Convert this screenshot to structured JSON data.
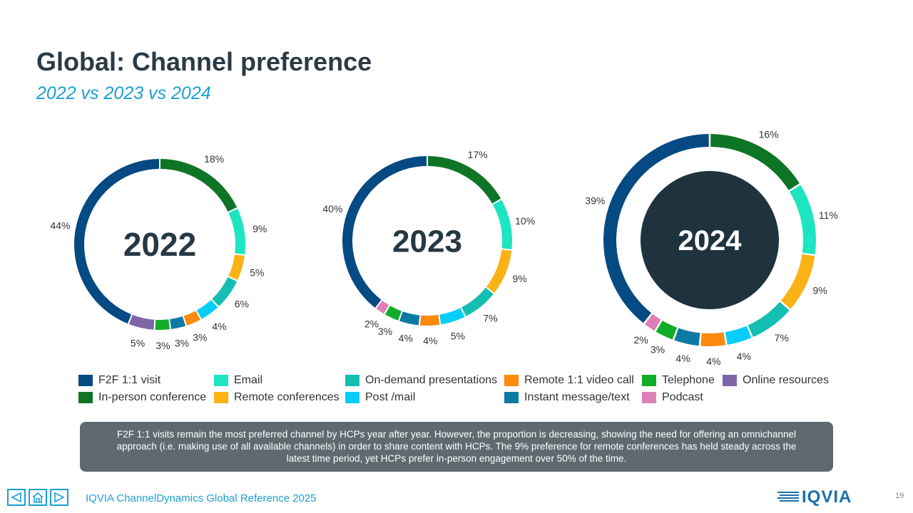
{
  "page": {
    "title": "Global: Channel preference",
    "subtitle": "2022 vs 2023 vs 2024",
    "callout": "F2F 1:1 visits remain the most preferred channel by HCPs year after year. However, the proportion is decreasing, showing the need for offering an omnichannel approach (i.e. making use of all available channels) in order to share content with HCPs. The 9% preference for remote conferences has held steady across the latest time period, yet HCPs prefer in-person engagement over 50% of the time.",
    "footer": "IQVIA ChannelDynamics Global Reference 2025",
    "logo_text": "IQVIA",
    "page_number": "19"
  },
  "legend": [
    {
      "label": "F2F 1:1 visit",
      "color": "#054a82"
    },
    {
      "label": "In-person conference",
      "color": "#0f7526"
    },
    {
      "label": "Email",
      "color": "#1de5c2"
    },
    {
      "label": "Remote conferences",
      "color": "#fbb215"
    },
    {
      "label": "On-demand presentations",
      "color": "#14beb1"
    },
    {
      "label": "Post /mail",
      "color": "#06cdf9"
    },
    {
      "label": "Remote 1:1 video call",
      "color": "#fd890d"
    },
    {
      "label": "Instant message/text",
      "color": "#0d7aa3"
    },
    {
      "label": "Telephone",
      "color": "#12ad28"
    },
    {
      "label": "Podcast",
      "color": "#dd80b8"
    },
    {
      "label": "Online resources",
      "color": "#7e65a8"
    }
  ],
  "nav_icons": [
    "prev-icon",
    "home-icon",
    "next-icon"
  ],
  "chart_data": [
    {
      "type": "pie",
      "year_label": "2022",
      "center_filled": false,
      "slices": [
        {
          "name": "In-person conference",
          "value": 18,
          "label": "18%",
          "color": "#0f7526"
        },
        {
          "name": "Email",
          "value": 9,
          "label": "9%",
          "color": "#1de5c2"
        },
        {
          "name": "Remote conferences",
          "value": 5,
          "label": "5%",
          "color": "#fbb215"
        },
        {
          "name": "On-demand presentations",
          "value": 6,
          "label": "6%",
          "color": "#14beb1"
        },
        {
          "name": "Post /mail",
          "value": 4,
          "label": "4%",
          "color": "#06cdf9"
        },
        {
          "name": "Remote 1:1 video call",
          "value": 3,
          "label": "3%",
          "color": "#fd890d"
        },
        {
          "name": "Instant message/text",
          "value": 3,
          "label": "3%",
          "color": "#0d7aa3"
        },
        {
          "name": "Telephone",
          "value": 3,
          "label": "3%",
          "color": "#12ad28"
        },
        {
          "name": "Online resources",
          "value": 5,
          "label": "5%",
          "color": "#7e65a8"
        },
        {
          "name": "F2F 1:1 visit",
          "value": 44,
          "label": "44%",
          "color": "#054a82"
        }
      ]
    },
    {
      "type": "pie",
      "year_label": "2023",
      "center_filled": false,
      "slices": [
        {
          "name": "In-person conference",
          "value": 17,
          "label": "17%",
          "color": "#0f7526"
        },
        {
          "name": "Email",
          "value": 10,
          "label": "10%",
          "color": "#1de5c2"
        },
        {
          "name": "Remote conferences",
          "value": 9,
          "label": "9%",
          "color": "#fbb215"
        },
        {
          "name": "On-demand presentations",
          "value": 7,
          "label": "7%",
          "color": "#14beb1"
        },
        {
          "name": "Post /mail",
          "value": 5,
          "label": "5%",
          "color": "#06cdf9"
        },
        {
          "name": "Remote 1:1 video call",
          "value": 4,
          "label": "4%",
          "color": "#fd890d"
        },
        {
          "name": "Instant message/text",
          "value": 4,
          "label": "4%",
          "color": "#0d7aa3"
        },
        {
          "name": "Telephone",
          "value": 3,
          "label": "3%",
          "color": "#12ad28"
        },
        {
          "name": "Podcast",
          "value": 2,
          "label": "2%",
          "color": "#dd80b8"
        },
        {
          "name": "F2F 1:1 visit",
          "value": 40,
          "label": "40%",
          "color": "#054a82"
        }
      ]
    },
    {
      "type": "pie",
      "year_label": "2024",
      "center_filled": true,
      "center_color": "#1e333e",
      "slices": [
        {
          "name": "In-person conference",
          "value": 16,
          "label": "16%",
          "color": "#0f7526"
        },
        {
          "name": "Email",
          "value": 11,
          "label": "11%",
          "color": "#1de5c2"
        },
        {
          "name": "Remote conferences",
          "value": 9,
          "label": "9%",
          "color": "#fbb215"
        },
        {
          "name": "On-demand presentations",
          "value": 7,
          "label": "7%",
          "color": "#14beb1"
        },
        {
          "name": "Post /mail",
          "value": 4,
          "label": "4%",
          "color": "#06cdf9"
        },
        {
          "name": "Remote 1:1 video call",
          "value": 4,
          "label": "4%",
          "color": "#fd890d"
        },
        {
          "name": "Instant message/text",
          "value": 4,
          "label": "4%",
          "color": "#0d7aa3"
        },
        {
          "name": "Telephone",
          "value": 3,
          "label": "3%",
          "color": "#12ad28"
        },
        {
          "name": "Podcast",
          "value": 2,
          "label": "2%",
          "color": "#dd80b8"
        },
        {
          "name": "F2F 1:1 visit",
          "value": 39,
          "label": "39%",
          "color": "#054a82"
        }
      ]
    }
  ]
}
